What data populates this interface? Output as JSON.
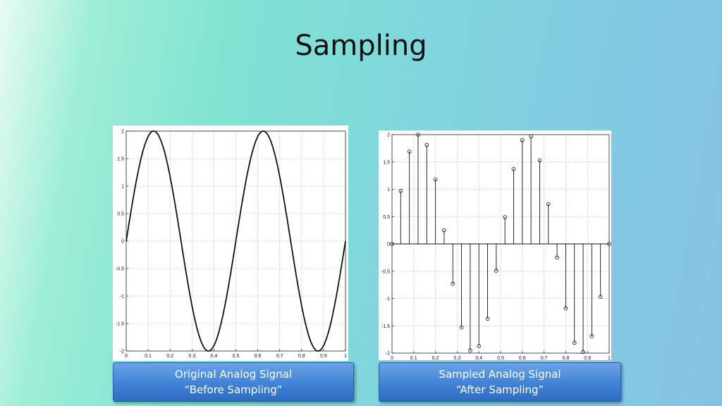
{
  "slide": {
    "title": "Sampling",
    "captions": {
      "left": {
        "line1": "Original Analog Signal",
        "line2": "“Before Sampling”"
      },
      "right": {
        "line1": "Sampled Analog Signal",
        "line2": "“After Sampling”"
      }
    }
  },
  "chart_data": [
    {
      "type": "line",
      "title": "",
      "xlabel": "",
      "ylabel": "",
      "xlim": [
        0,
        1
      ],
      "ylim": [
        -2,
        2
      ],
      "grid": true,
      "xticks": [
        "0",
        "0.1",
        "0.2",
        "0.3",
        "0.4",
        "0.5",
        "0.6",
        "0.7",
        "0.8",
        "0.9",
        "1"
      ],
      "yticks": [
        "-2",
        "-1.5",
        "-1",
        "-0.5",
        "0",
        "0.5",
        "1",
        "1.5",
        "2"
      ],
      "series": [
        {
          "function": "2*sin(4*pi*x)",
          "x": [
            0,
            0.025,
            0.05,
            0.075,
            0.1,
            0.125,
            0.15,
            0.175,
            0.2,
            0.225,
            0.25,
            0.275,
            0.3,
            0.325,
            0.35,
            0.375,
            0.4,
            0.425,
            0.45,
            0.475,
            0.5,
            0.525,
            0.55,
            0.575,
            0.6,
            0.625,
            0.65,
            0.675,
            0.7,
            0.725,
            0.75,
            0.775,
            0.8,
            0.825,
            0.85,
            0.875,
            0.9,
            0.925,
            0.95,
            0.975,
            1
          ],
          "y": [
            0,
            0.618,
            1.176,
            1.618,
            1.902,
            2,
            1.902,
            1.618,
            1.176,
            0.618,
            0,
            -0.618,
            -1.176,
            -1.618,
            -1.902,
            -2,
            -1.902,
            -1.618,
            -1.176,
            -0.618,
            0,
            0.618,
            1.176,
            1.618,
            1.902,
            2,
            1.902,
            1.618,
            1.176,
            0.618,
            0,
            -0.618,
            -1.176,
            -1.618,
            -1.902,
            -2,
            -1.902,
            -1.618,
            -1.176,
            -0.618,
            0
          ]
        }
      ],
      "line_color": "#111111"
    },
    {
      "type": "stem",
      "title": "",
      "xlabel": "",
      "ylabel": "",
      "xlim": [
        0,
        1
      ],
      "ylim": [
        -2,
        2
      ],
      "grid": true,
      "xticks": [
        "0",
        "0.1",
        "0.2",
        "0.3",
        "0.4",
        "0.5",
        "0.6",
        "0.7",
        "0.8",
        "0.9",
        "1"
      ],
      "yticks": [
        "-2",
        "-1.5",
        "-1",
        "-0.5",
        "0",
        "0.5",
        "1",
        "1.5",
        "2"
      ],
      "series": [
        {
          "x": [
            0,
            0.04,
            0.08,
            0.12,
            0.16,
            0.2,
            0.24,
            0.28,
            0.32,
            0.36,
            0.4,
            0.44,
            0.48,
            0.52,
            0.56,
            0.6,
            0.64,
            0.68,
            0.72,
            0.76,
            0.8,
            0.84,
            0.88,
            0.92,
            0.96,
            1
          ],
          "y": [
            0,
            0.97,
            1.69,
            2.0,
            1.81,
            1.18,
            0.25,
            -0.73,
            -1.53,
            -1.95,
            -1.87,
            -1.37,
            -0.49,
            0.49,
            1.37,
            1.9,
            1.97,
            1.53,
            0.73,
            -0.25,
            -1.18,
            -1.81,
            -1.98,
            -1.69,
            -0.97,
            0
          ]
        }
      ],
      "line_color": "#111111"
    }
  ]
}
